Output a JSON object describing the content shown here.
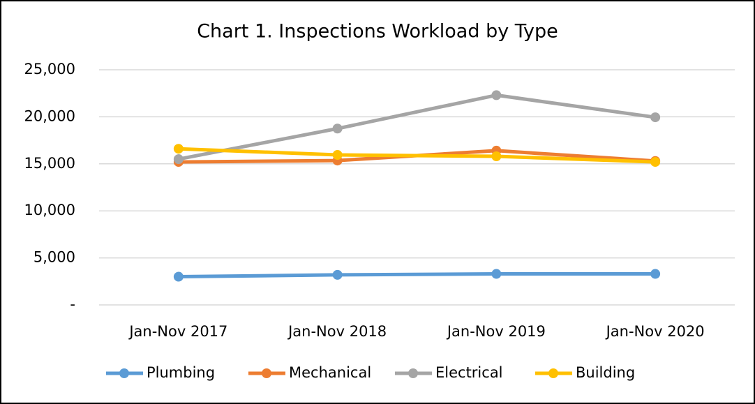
{
  "chart_data": {
    "type": "line",
    "title": "Chart 1. Inspections Workload by Type",
    "categories": [
      "Jan-Nov 2017",
      "Jan-Nov 2018",
      "Jan-Nov 2019",
      "Jan-Nov 2020"
    ],
    "series": [
      {
        "name": "Plumbing",
        "color": "#5b9bd5",
        "values": [
          3000,
          3200,
          3300,
          3300
        ]
      },
      {
        "name": "Mechanical",
        "color": "#ed7d31",
        "values": [
          15200,
          15350,
          16400,
          15300
        ]
      },
      {
        "name": "Electrical",
        "color": "#a5a5a5",
        "values": [
          15500,
          18750,
          22300,
          19950
        ]
      },
      {
        "name": "Building",
        "color": "#ffc000",
        "values": [
          16600,
          15950,
          15800,
          15200
        ]
      }
    ],
    "ylim": [
      0,
      25000
    ],
    "yticks": [
      {
        "value": 0,
        "label": "-"
      },
      {
        "value": 5000,
        "label": "5,000"
      },
      {
        "value": 10000,
        "label": "10,000"
      },
      {
        "value": 15000,
        "label": "15,000"
      },
      {
        "value": 20000,
        "label": "20,000"
      },
      {
        "value": 25000,
        "label": "25,000"
      }
    ],
    "grid": true,
    "legend": "bottom"
  }
}
